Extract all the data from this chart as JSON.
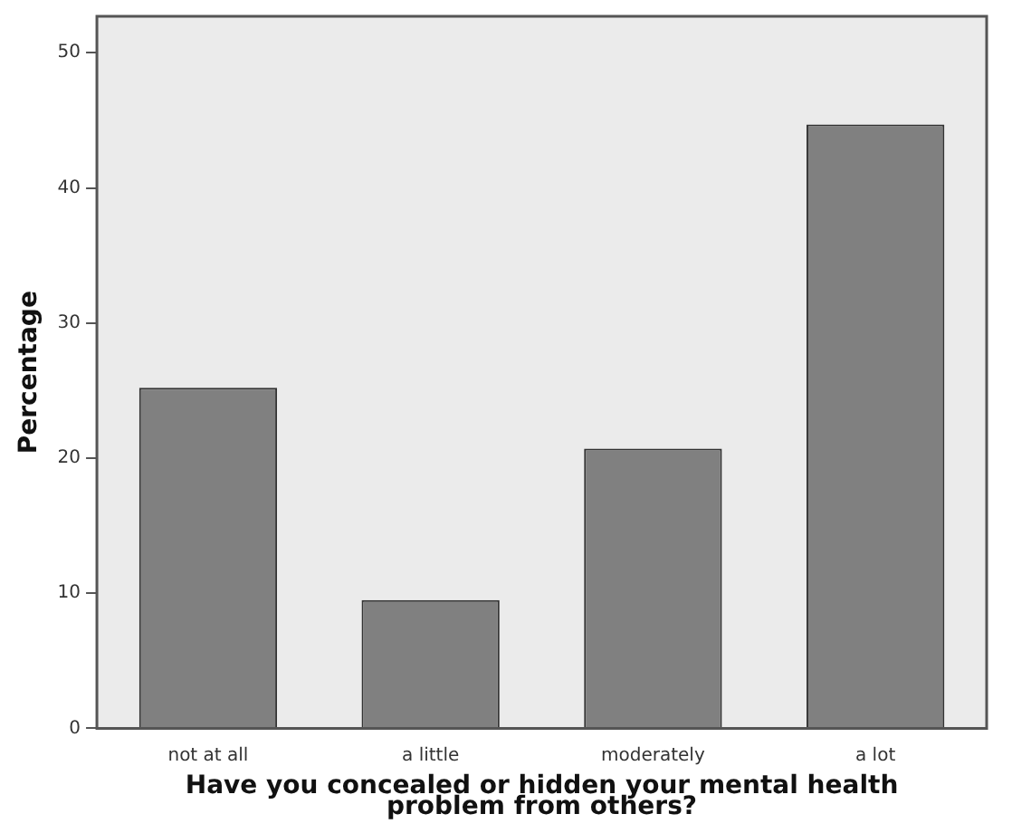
{
  "chart_data": {
    "type": "bar",
    "xlabel": "Have you concealed or hidden your mental health\nproblem from others?",
    "ylabel": "Percentage",
    "categories": [
      "not at all",
      "a little",
      "moderately",
      "a lot"
    ],
    "values": [
      25.2,
      9.5,
      20.7,
      44.7
    ],
    "color": "#808080",
    "ylim": [
      0,
      52.7
    ],
    "yticks": [
      0,
      10,
      20,
      30,
      40,
      50
    ],
    "grid": false
  }
}
